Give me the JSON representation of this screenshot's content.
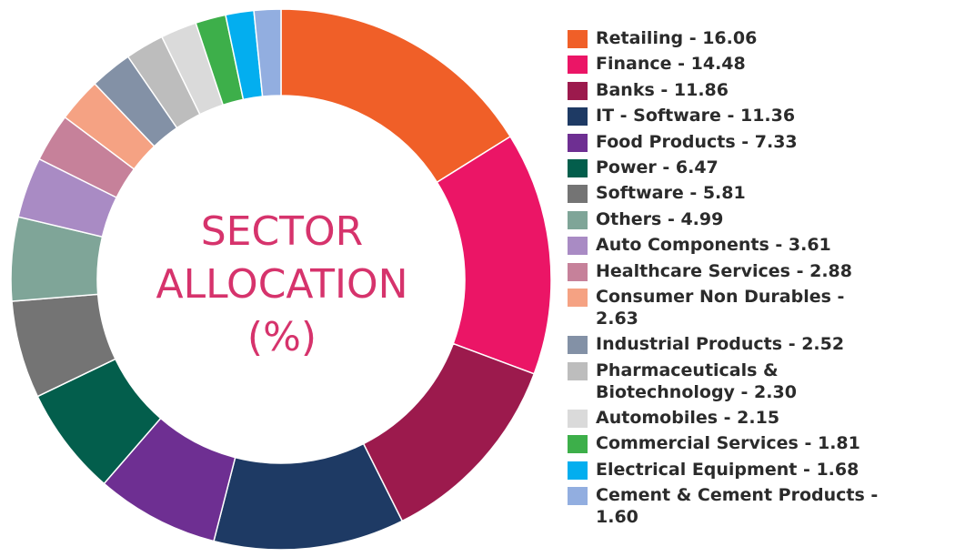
{
  "chart_data": {
    "type": "pie",
    "title": "SECTOR ALLOCATION (%)",
    "title_lines": [
      "SECTOR",
      "ALLOCATION",
      "(%)"
    ],
    "legend_position": "right",
    "slices": [
      {
        "label": "Retailing",
        "value": 16.06,
        "legend": "Retailing - 16.06",
        "color": "#f05f28"
      },
      {
        "label": "Finance",
        "value": 14.48,
        "legend": "Finance - 14.48",
        "color": "#eb1566"
      },
      {
        "label": "Banks",
        "value": 11.86,
        "legend": "Banks - 11.86",
        "color": "#9c1a4d"
      },
      {
        "label": "IT - Software",
        "value": 11.36,
        "legend": "IT - Software - 11.36",
        "color": "#1e3a64"
      },
      {
        "label": "Food Products",
        "value": 7.33,
        "legend": "Food Products - 7.33",
        "color": "#6e2f92"
      },
      {
        "label": "Power",
        "value": 6.47,
        "legend": "Power - 6.47",
        "color": "#035e4c"
      },
      {
        "label": "Software",
        "value": 5.81,
        "legend": "Software - 5.81",
        "color": "#747474"
      },
      {
        "label": "Others",
        "value": 4.99,
        "legend": "Others - 4.99",
        "color": "#7fa598"
      },
      {
        "label": "Auto Components",
        "value": 3.61,
        "legend": "Auto Components - 3.61",
        "color": "#a98bc4"
      },
      {
        "label": "Healthcare Services",
        "value": 2.88,
        "legend": "Healthcare Services - 2.88",
        "color": "#c6819a"
      },
      {
        "label": "Consumer Non Durables",
        "value": 2.63,
        "legend": "Consumer Non Durables - 2.63",
        "color": "#f5a283"
      },
      {
        "label": "Industrial Products",
        "value": 2.52,
        "legend": "Industrial Products - 2.52",
        "color": "#8391a6"
      },
      {
        "label": "Pharmaceuticals & Biotechnology",
        "value": 2.3,
        "legend": "Pharmaceuticals & Biotechnology - 2.30",
        "color": "#bdbdbd"
      },
      {
        "label": "Automobiles",
        "value": 2.15,
        "legend": "Automobiles - 2.15",
        "color": "#dadada"
      },
      {
        "label": "Commercial Services",
        "value": 1.81,
        "legend": "Commercial Services - 1.81",
        "color": "#3daf4a"
      },
      {
        "label": "Electrical Equipment",
        "value": 1.68,
        "legend": "Electrical Equipment - 1.68",
        "color": "#03aeef"
      },
      {
        "label": "Cement & Cement Products",
        "value": 1.6,
        "legend": "Cement & Cement Products - 1.60",
        "color": "#92aee0"
      }
    ]
  }
}
